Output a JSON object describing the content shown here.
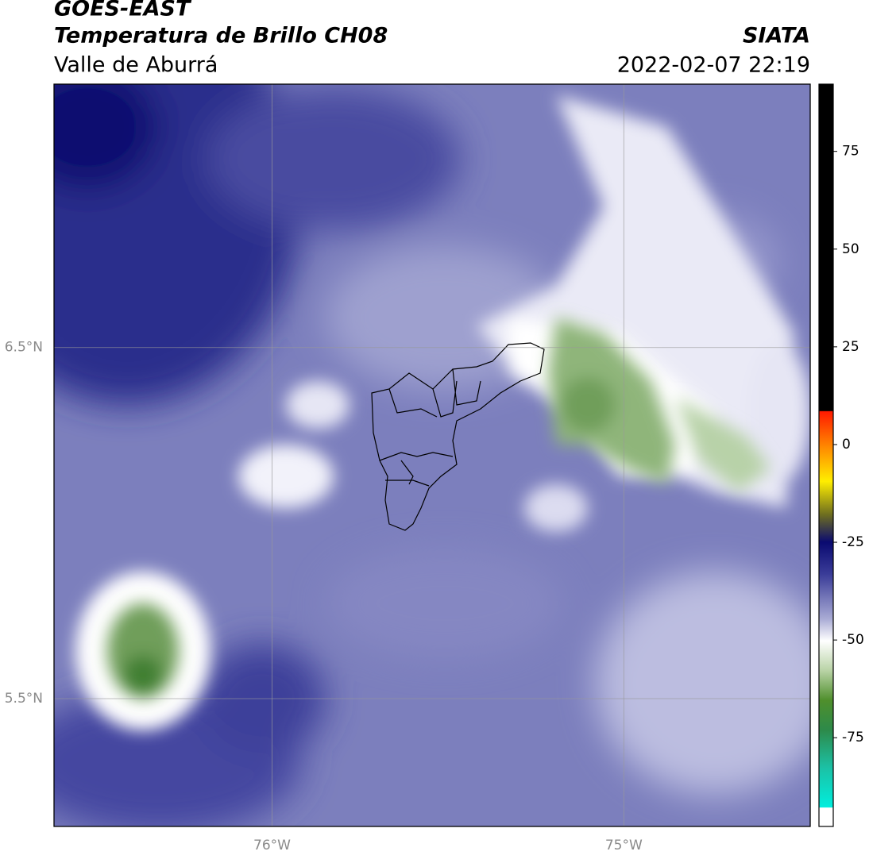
{
  "header": {
    "title": "GOES-EAST",
    "subtitle": "Temperatura de Brillo CH08",
    "region": "Valle de Aburrá",
    "agency": "SIATA",
    "datetime": "2022-02-07 22:19"
  },
  "map": {
    "xlim": [
      -76.62,
      -74.47
    ],
    "ylim": [
      5.136,
      7.25
    ],
    "xticks": [
      {
        "value": -76,
        "label": "76°W"
      },
      {
        "value": -75,
        "label": "75°W"
      }
    ],
    "yticks": [
      {
        "value": 6.5,
        "label": "6.5°N"
      },
      {
        "value": 5.5,
        "label": "5.5°N"
      }
    ],
    "grid": true,
    "colorbar": {
      "lim": [
        -97.7,
        92.2
      ],
      "ticks": [
        75,
        50,
        25,
        0,
        -25,
        -50,
        -75
      ]
    }
  }
}
